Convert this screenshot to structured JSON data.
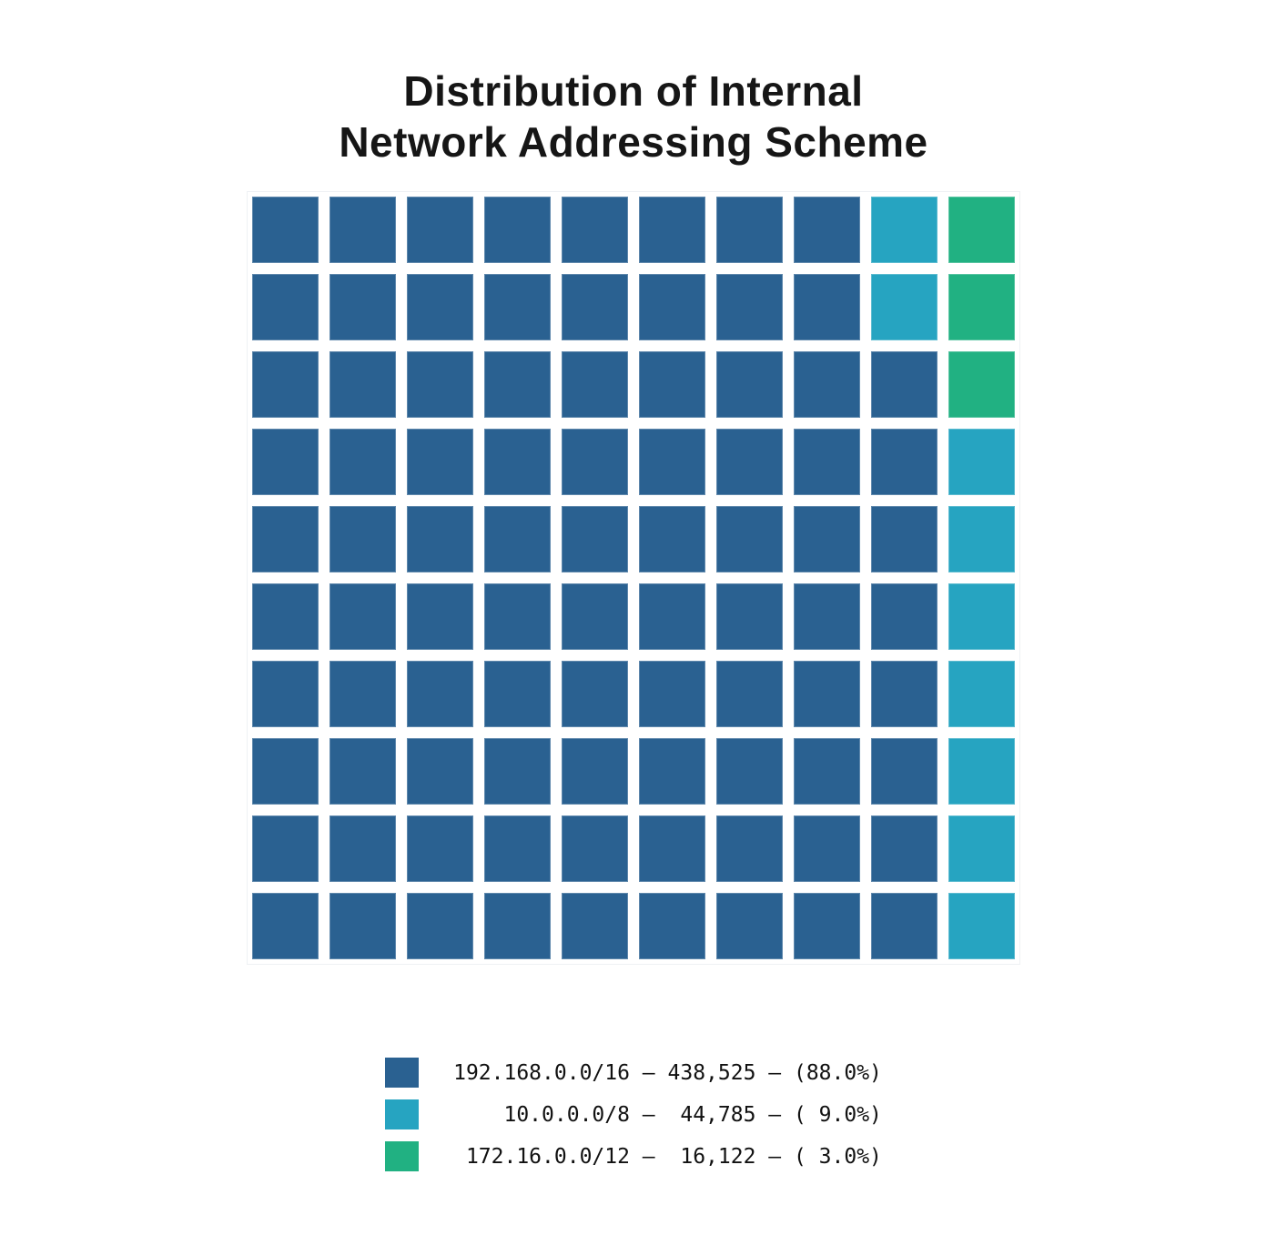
{
  "title": {
    "line1": "Distribution of Internal",
    "line2": "Network Addressing Scheme"
  },
  "chart_data": {
    "type": "waffle",
    "rows": 10,
    "cols": 10,
    "total_squares": 100,
    "square_unit_percent": 1.0,
    "fill_order": "column-major, bottom-up, columns left-to-right",
    "categories": [
      {
        "label": "192.168.0.0/16",
        "value": 438525,
        "value_text": "438,525",
        "percent": 88.0,
        "squares": 88,
        "color": "#2a6191"
      },
      {
        "label": "10.0.0.0/8",
        "value": 44785,
        "value_text": "44,785",
        "percent": 9.0,
        "squares": 9,
        "color": "#26a4c1"
      },
      {
        "label": "172.16.0.0/12",
        "value": 16122,
        "value_text": "16,122",
        "percent": 3.0,
        "squares": 3,
        "color": "#21b182"
      }
    ],
    "grid": [
      [
        0,
        0,
        0,
        0,
        0,
        0,
        0,
        0,
        1,
        2
      ],
      [
        0,
        0,
        0,
        0,
        0,
        0,
        0,
        0,
        1,
        2
      ],
      [
        0,
        0,
        0,
        0,
        0,
        0,
        0,
        0,
        0,
        2
      ],
      [
        0,
        0,
        0,
        0,
        0,
        0,
        0,
        0,
        0,
        1
      ],
      [
        0,
        0,
        0,
        0,
        0,
        0,
        0,
        0,
        0,
        1
      ],
      [
        0,
        0,
        0,
        0,
        0,
        0,
        0,
        0,
        0,
        1
      ],
      [
        0,
        0,
        0,
        0,
        0,
        0,
        0,
        0,
        0,
        1
      ],
      [
        0,
        0,
        0,
        0,
        0,
        0,
        0,
        0,
        0,
        1
      ],
      [
        0,
        0,
        0,
        0,
        0,
        0,
        0,
        0,
        0,
        1
      ],
      [
        0,
        0,
        0,
        0,
        0,
        0,
        0,
        0,
        0,
        1
      ]
    ],
    "legend": {
      "position": "bottom",
      "entries": [
        {
          "text": "192.168.0.0/16 — 438,525 — (88.0%)"
        },
        {
          "text": "    10.0.0.0/8 —  44,785 — ( 9.0%)"
        },
        {
          "text": " 172.16.0.0/12 —  16,122 — ( 3.0%)"
        }
      ]
    }
  }
}
